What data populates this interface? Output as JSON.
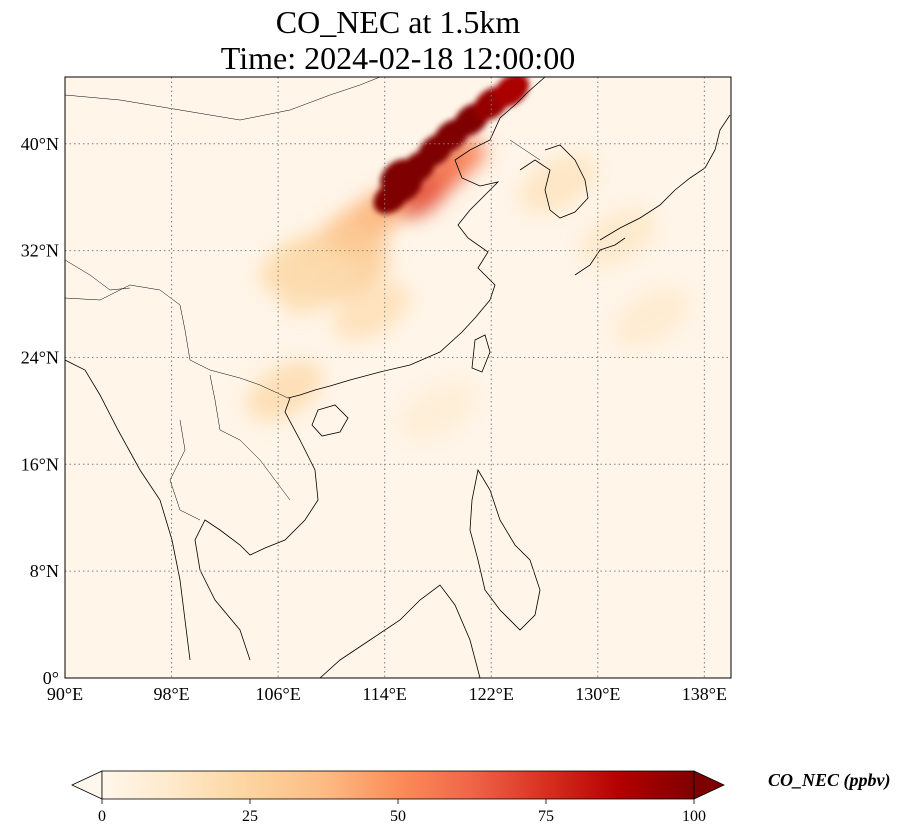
{
  "title": {
    "line1": "CO_NEC at 1.5km",
    "line2": "Time: 2024-02-18 12:00:00"
  },
  "map": {
    "projection": "PlateCarree",
    "extent": {
      "lon": [
        90,
        140
      ],
      "lat": [
        0,
        45
      ]
    },
    "gridlines": "dotted",
    "coastlines": true,
    "borders": true,
    "lon_ticks": [
      {
        "value": 90,
        "label": "90°E"
      },
      {
        "value": 98,
        "label": "98°E"
      },
      {
        "value": 106,
        "label": "106°E"
      },
      {
        "value": 114,
        "label": "114°E"
      },
      {
        "value": 122,
        "label": "122°E"
      },
      {
        "value": 130,
        "label": "130°E"
      },
      {
        "value": 138,
        "label": "138°E"
      }
    ],
    "lat_ticks": [
      {
        "value": 0,
        "label": "0°"
      },
      {
        "value": 8,
        "label": "8°N"
      },
      {
        "value": 16,
        "label": "16°N"
      },
      {
        "value": 24,
        "label": "24°N"
      },
      {
        "value": 32,
        "label": "32°N"
      },
      {
        "value": 40,
        "label": "40°N"
      }
    ]
  },
  "colorbar": {
    "label": "CO_NEC (ppbv)",
    "colormap": "OrRd",
    "range": [
      0,
      100
    ],
    "extend": "both",
    "ticks": [
      {
        "value": 0,
        "label": "0"
      },
      {
        "value": 25,
        "label": "25"
      },
      {
        "value": 50,
        "label": "50"
      },
      {
        "value": 75,
        "label": "75"
      },
      {
        "value": 100,
        "label": "100"
      }
    ],
    "colors": {
      "c0": "#fff7ec",
      "c1": "#fee8c8",
      "c2": "#fdd49e",
      "c3": "#fdbb84",
      "c4": "#fc8d59",
      "c5": "#ef6548",
      "c6": "#d7301f",
      "c7": "#b30000",
      "c8": "#7f0000"
    }
  },
  "plume_cells": [
    {
      "lon": 114.5,
      "lat": 36.0,
      "value": 110
    },
    {
      "lon": 115.5,
      "lat": 36.8,
      "value": 110
    },
    {
      "lon": 115.0,
      "lat": 37.6,
      "value": 110
    },
    {
      "lon": 116.5,
      "lat": 38.2,
      "value": 110
    },
    {
      "lon": 117.8,
      "lat": 39.5,
      "value": 105
    },
    {
      "lon": 119.0,
      "lat": 40.6,
      "value": 100
    },
    {
      "lon": 120.5,
      "lat": 41.8,
      "value": 100
    },
    {
      "lon": 122.0,
      "lat": 43.0,
      "value": 95
    },
    {
      "lon": 123.5,
      "lat": 44.0,
      "value": 90
    },
    {
      "lon": 116.5,
      "lat": 36.0,
      "value": 70
    },
    {
      "lon": 118.0,
      "lat": 37.5,
      "value": 65
    },
    {
      "lon": 119.5,
      "lat": 38.8,
      "value": 55
    },
    {
      "lon": 113.5,
      "lat": 35.0,
      "value": 45
    },
    {
      "lon": 112.0,
      "lat": 33.5,
      "value": 35
    },
    {
      "lon": 110.0,
      "lat": 32.0,
      "value": 30
    },
    {
      "lon": 107.5,
      "lat": 31.0,
      "value": 22
    },
    {
      "lon": 111.5,
      "lat": 30.5,
      "value": 28
    },
    {
      "lon": 109.0,
      "lat": 29.5,
      "value": 20
    },
    {
      "lon": 113.0,
      "lat": 27.5,
      "value": 18
    },
    {
      "lon": 106.5,
      "lat": 21.5,
      "value": 20
    },
    {
      "lon": 127.0,
      "lat": 37.0,
      "value": 15
    },
    {
      "lon": 131.5,
      "lat": 33.0,
      "value": 12
    },
    {
      "lon": 134.0,
      "lat": 27.0,
      "value": 10
    },
    {
      "lon": 118.0,
      "lat": 20.0,
      "value": 8
    }
  ]
}
